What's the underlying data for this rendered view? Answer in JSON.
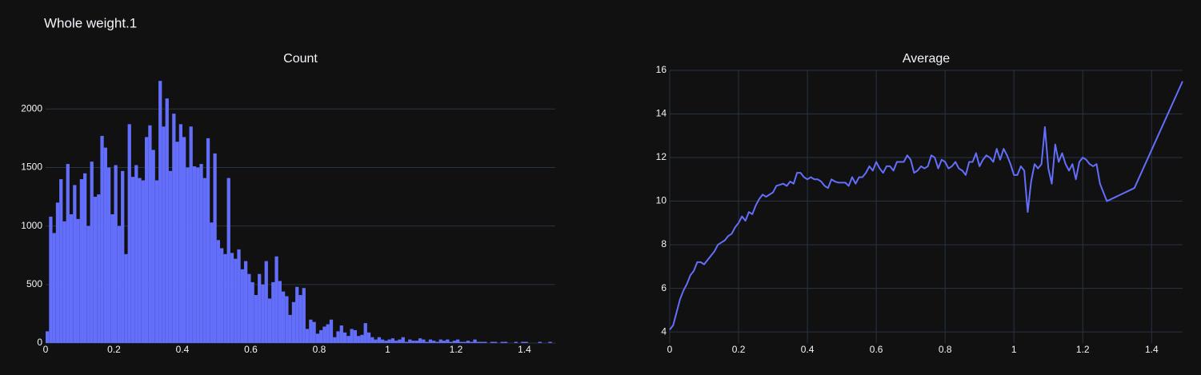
{
  "title": "Whole weight.1",
  "chart_data": [
    {
      "type": "histogram",
      "title": "Count",
      "color": "#636efa",
      "bins": [
        0,
        0.01,
        0.02,
        0.03,
        0.04,
        0.05,
        0.06,
        0.07,
        0.08,
        0.09,
        0.1,
        0.11,
        0.12,
        0.13,
        0.14,
        0.15,
        0.16,
        0.17,
        0.18,
        0.19,
        0.2,
        0.21,
        0.22,
        0.23,
        0.24,
        0.25,
        0.26,
        0.27,
        0.28,
        0.29,
        0.3,
        0.31,
        0.32,
        0.33,
        0.34,
        0.35,
        0.36,
        0.37,
        0.38,
        0.39,
        0.4,
        0.41,
        0.42,
        0.43,
        0.44,
        0.45,
        0.46,
        0.47,
        0.48,
        0.49,
        0.5,
        0.51,
        0.52,
        0.53,
        0.54,
        0.55,
        0.56,
        0.57,
        0.58,
        0.59,
        0.6,
        0.61,
        0.62,
        0.63,
        0.64,
        0.65,
        0.66,
        0.67,
        0.68,
        0.69,
        0.7,
        0.71,
        0.72,
        0.73,
        0.74,
        0.75,
        0.76,
        0.77,
        0.78,
        0.79,
        0.8,
        0.81,
        0.82,
        0.83,
        0.84,
        0.85,
        0.86,
        0.87,
        0.88,
        0.89,
        0.9,
        0.91,
        0.92,
        0.93,
        0.94,
        0.95,
        0.96,
        0.97,
        0.98,
        0.99,
        1,
        1.01,
        1.02,
        1.03,
        1.04,
        1.05,
        1.06,
        1.07,
        1.08,
        1.09,
        1.1,
        1.11,
        1.12,
        1.13,
        1.14,
        1.15,
        1.16,
        1.17,
        1.18,
        1.19,
        1.2,
        1.21,
        1.22,
        1.23,
        1.24,
        1.25,
        1.26,
        1.27,
        1.28,
        1.29,
        1.3,
        1.31,
        1.32,
        1.33,
        1.34,
        1.35,
        1.36,
        1.37,
        1.38,
        1.39,
        1.4,
        1.41,
        1.42,
        1.43,
        1.44,
        1.45,
        1.46,
        1.47,
        1.48,
        1.49
      ],
      "values": [
        100,
        1080,
        940,
        1200,
        1400,
        1040,
        1530,
        1100,
        1350,
        1060,
        1400,
        1450,
        1000,
        1550,
        1250,
        1270,
        1770,
        1670,
        1500,
        1100,
        1520,
        1000,
        1470,
        760,
        1870,
        1420,
        1520,
        1410,
        1390,
        1760,
        1860,
        1650,
        1390,
        2240,
        1850,
        2090,
        1470,
        1960,
        1720,
        1870,
        1760,
        1500,
        1850,
        1510,
        1500,
        1530,
        1410,
        1750,
        1030,
        1620,
        880,
        810,
        760,
        1410,
        770,
        720,
        800,
        630,
        700,
        590,
        520,
        410,
        590,
        500,
        700,
        380,
        520,
        740,
        530,
        440,
        400,
        240,
        350,
        480,
        410,
        470,
        120,
        200,
        180,
        80,
        110,
        140,
        160,
        200,
        50,
        100,
        150,
        90,
        60,
        120,
        110,
        60,
        70,
        170,
        90,
        50,
        30,
        50,
        30,
        20,
        30,
        40,
        20,
        30,
        50,
        10,
        30,
        20,
        20,
        40,
        30,
        10,
        30,
        20,
        10,
        30,
        20,
        30,
        10,
        20,
        30,
        10,
        10,
        20,
        10,
        30,
        10,
        10,
        10,
        0,
        10,
        10,
        0,
        10,
        10,
        0,
        0,
        10,
        0,
        10,
        10,
        0,
        0,
        0,
        10,
        0,
        0,
        10,
        0
      ],
      "xlim": [
        0,
        1.49
      ],
      "xticks": [
        0,
        0.2,
        0.4,
        0.6,
        0.8,
        1,
        1.2,
        1.4
      ],
      "ylim": [
        0,
        2330
      ],
      "yticks": [
        0,
        500,
        1000,
        1500,
        2000
      ],
      "xgrid": false,
      "ygrid": true
    },
    {
      "type": "line",
      "title": "Average",
      "color": "#636efa",
      "x": [
        0,
        0.01,
        0.02,
        0.03,
        0.04,
        0.05,
        0.06,
        0.07,
        0.08,
        0.09,
        0.1,
        0.11,
        0.12,
        0.13,
        0.14,
        0.15,
        0.16,
        0.17,
        0.18,
        0.19,
        0.2,
        0.21,
        0.22,
        0.23,
        0.24,
        0.25,
        0.26,
        0.27,
        0.28,
        0.29,
        0.3,
        0.31,
        0.32,
        0.33,
        0.34,
        0.35,
        0.36,
        0.37,
        0.38,
        0.39,
        0.4,
        0.41,
        0.42,
        0.43,
        0.44,
        0.45,
        0.46,
        0.47,
        0.48,
        0.49,
        0.5,
        0.51,
        0.52,
        0.53,
        0.54,
        0.55,
        0.56,
        0.57,
        0.58,
        0.59,
        0.6,
        0.61,
        0.62,
        0.63,
        0.64,
        0.65,
        0.66,
        0.67,
        0.68,
        0.69,
        0.7,
        0.71,
        0.72,
        0.73,
        0.74,
        0.75,
        0.76,
        0.77,
        0.78,
        0.79,
        0.8,
        0.81,
        0.82,
        0.83,
        0.84,
        0.85,
        0.86,
        0.87,
        0.88,
        0.89,
        0.9,
        0.91,
        0.92,
        0.93,
        0.94,
        0.95,
        0.96,
        0.97,
        0.98,
        0.99,
        1,
        1.01,
        1.02,
        1.03,
        1.04,
        1.05,
        1.06,
        1.07,
        1.08,
        1.09,
        1.1,
        1.11,
        1.12,
        1.13,
        1.14,
        1.15,
        1.16,
        1.17,
        1.18,
        1.19,
        1.2,
        1.21,
        1.22,
        1.23,
        1.24,
        1.25,
        1.27,
        1.35,
        1.49
      ],
      "values": [
        4.1,
        4.3,
        4.9,
        5.5,
        5.9,
        6.2,
        6.6,
        6.8,
        7.2,
        7.2,
        7.1,
        7.3,
        7.5,
        7.7,
        8.0,
        8.1,
        8.2,
        8.4,
        8.5,
        8.8,
        9.0,
        9.3,
        9.1,
        9.5,
        9.4,
        9.8,
        10.1,
        10.3,
        10.2,
        10.3,
        10.4,
        10.7,
        10.75,
        10.8,
        10.7,
        10.9,
        10.8,
        11.3,
        11.3,
        11.1,
        11.0,
        11.1,
        11.0,
        11.0,
        10.9,
        10.7,
        10.6,
        11.0,
        10.9,
        10.85,
        10.85,
        10.85,
        10.7,
        11.1,
        10.8,
        11.1,
        11.1,
        11.3,
        11.6,
        11.4,
        11.8,
        11.5,
        11.3,
        11.6,
        11.6,
        11.4,
        11.8,
        11.8,
        11.8,
        12.1,
        11.9,
        11.3,
        11.4,
        11.6,
        11.5,
        11.6,
        12.1,
        12.0,
        11.5,
        11.9,
        11.8,
        11.5,
        11.6,
        11.8,
        11.5,
        11.4,
        11.2,
        11.8,
        11.8,
        12.2,
        11.6,
        11.9,
        12.1,
        12.0,
        11.8,
        12.4,
        11.9,
        12.4,
        12.1,
        11.7,
        11.2,
        11.2,
        11.6,
        11.4,
        9.5,
        10.9,
        11.7,
        11.5,
        11.7,
        13.4,
        11.5,
        10.8,
        12.6,
        11.8,
        12.2,
        11.7,
        11.4,
        11.7,
        11.0,
        11.8,
        12.0,
        11.9,
        11.7,
        11.6,
        11.7,
        10.8,
        10.0,
        10.6,
        15.5
      ],
      "xlim": [
        0,
        1.49
      ],
      "xticks": [
        0,
        0.2,
        0.4,
        0.6,
        0.8,
        1,
        1.2,
        1.4
      ],
      "ylim": [
        3.49,
        16
      ],
      "yticks": [
        4,
        6,
        8,
        10,
        12,
        14,
        16
      ],
      "xgrid": true,
      "ygrid": true
    }
  ]
}
